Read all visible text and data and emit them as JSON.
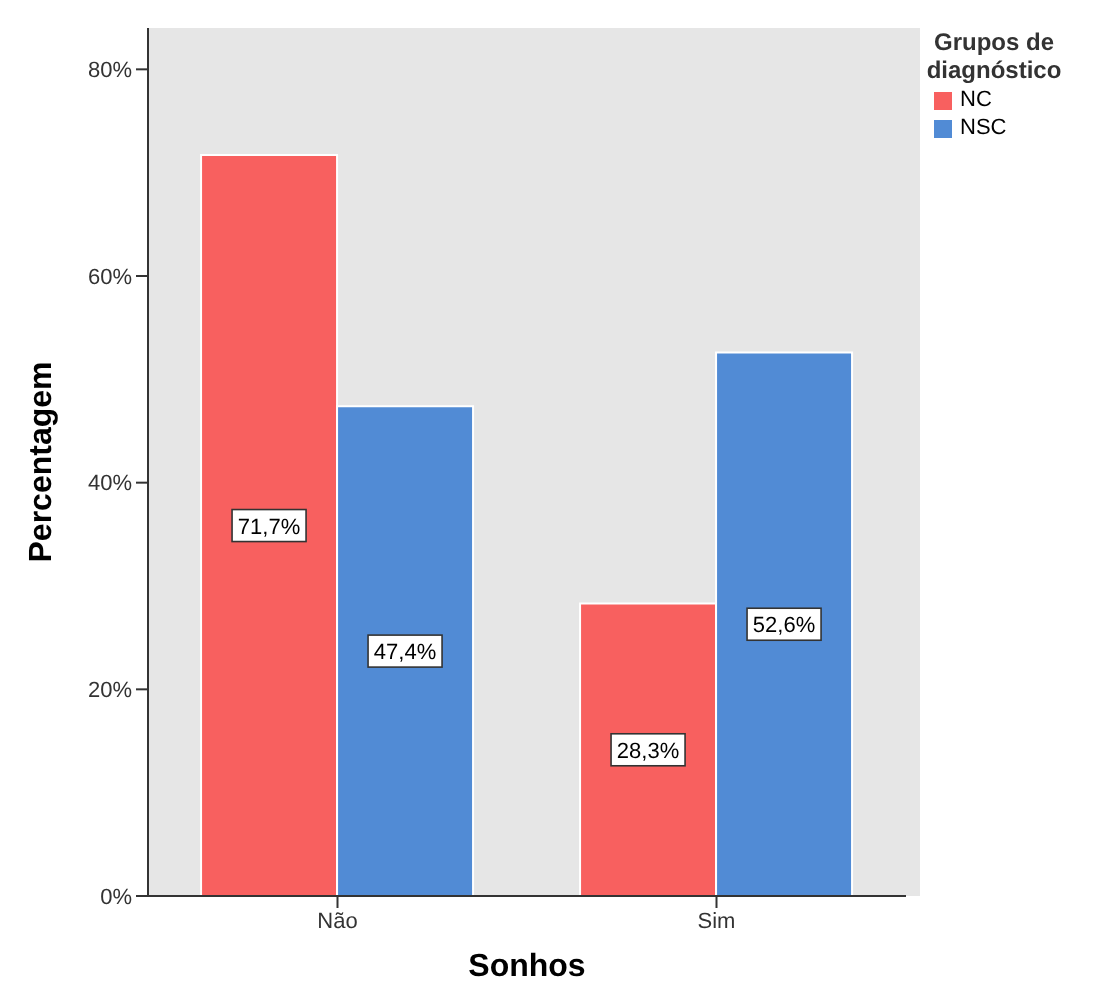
{
  "chart_data": {
    "type": "bar",
    "xlabel": "Sonhos",
    "ylabel": "Percentagem",
    "legend_title": "Grupos de diagnóstico",
    "categories": [
      "Não",
      "Sim"
    ],
    "series": [
      {
        "name": "NC",
        "color": "#f8605f",
        "values": [
          71.7,
          28.3
        ],
        "value_labels": [
          "71,7%",
          "28,3%"
        ]
      },
      {
        "name": "NSC",
        "color": "#518bd5",
        "values": [
          47.4,
          52.6
        ],
        "value_labels": [
          "47,4%",
          "52,6%"
        ]
      }
    ],
    "ylim": [
      0,
      84
    ],
    "yticks": [
      {
        "value": 0,
        "label": "0%"
      },
      {
        "value": 20,
        "label": "20%"
      },
      {
        "value": 40,
        "label": "40%"
      },
      {
        "value": 60,
        "label": "60%"
      },
      {
        "value": 80,
        "label": "80%"
      }
    ],
    "grid": false,
    "legend": "top right"
  }
}
